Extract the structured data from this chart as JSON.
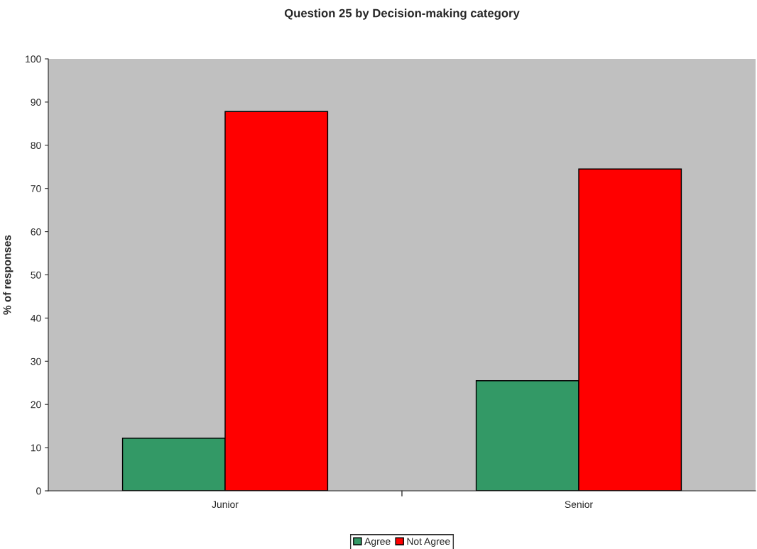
{
  "chart_data": {
    "type": "bar",
    "title": "Question 25 by Decision-making category",
    "ylabel": "% of responses",
    "categories": [
      "Junior",
      "Senior"
    ],
    "series": [
      {
        "name": "Agree",
        "color": "#339966",
        "values": [
          12.2,
          25.5
        ]
      },
      {
        "name": "Not Agree",
        "color": "#ff0000",
        "values": [
          87.8,
          74.5
        ]
      }
    ],
    "ylim": [
      0,
      100
    ],
    "yticks": [
      0,
      10,
      20,
      30,
      40,
      50,
      60,
      70,
      80,
      90,
      100
    ],
    "grid": false,
    "legend": "bottom"
  }
}
